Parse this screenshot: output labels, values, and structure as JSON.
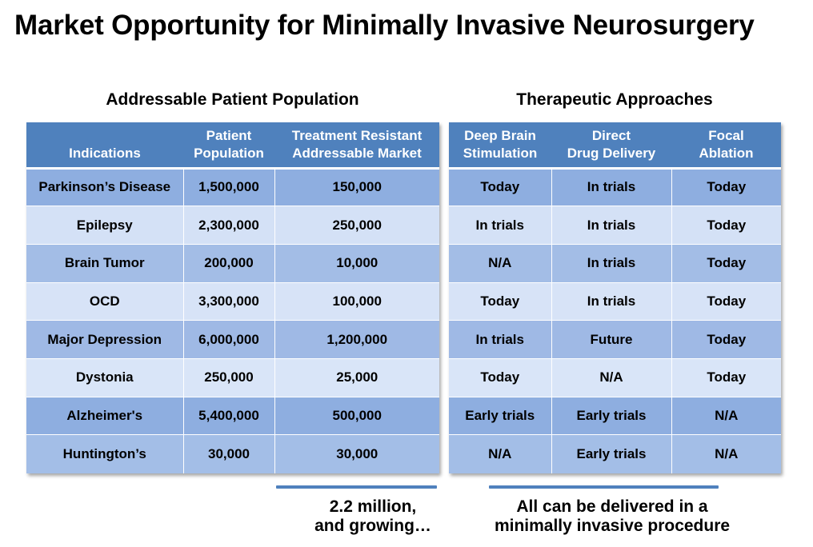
{
  "title": "Market Opportunity for Minimally Invasive Neurosurgery",
  "left_section": {
    "heading": "Addressable Patient Population",
    "headers": [
      "Indications",
      "Patient Population",
      "Treatment Resistant Addressable Market"
    ],
    "header_lines": [
      [
        "Indications"
      ],
      [
        "Patient",
        "Population"
      ],
      [
        "Treatment Resistant",
        "Addressable Market"
      ]
    ],
    "rows": [
      [
        "Parkinson’s Disease",
        "1,500,000",
        "150,000"
      ],
      [
        "Epilepsy",
        "2,300,000",
        "250,000"
      ],
      [
        "Brain Tumor",
        "200,000",
        "10,000"
      ],
      [
        "OCD",
        "3,300,000",
        "100,000"
      ],
      [
        "Major Depression",
        "6,000,000",
        "1,200,000"
      ],
      [
        "Dystonia",
        "250,000",
        "25,000"
      ],
      [
        "Alzheimer's",
        "5,400,000",
        "500,000"
      ],
      [
        "Huntington’s",
        "30,000",
        "30,000"
      ]
    ],
    "note_line1": "2.2 million,",
    "note_line2": "and growing…"
  },
  "right_section": {
    "heading": "Therapeutic Approaches",
    "header_lines": [
      [
        "Deep Brain",
        "Stimulation"
      ],
      [
        "Direct",
        "Drug Delivery"
      ],
      [
        "Focal",
        "Ablation"
      ]
    ],
    "rows": [
      [
        "Today",
        "In trials",
        "Today"
      ],
      [
        "In trials",
        "In trials",
        "Today"
      ],
      [
        "N/A",
        "In trials",
        "Today"
      ],
      [
        "Today",
        "In trials",
        "Today"
      ],
      [
        "In trials",
        "Future",
        "Today"
      ],
      [
        "Today",
        "N/A",
        "Today"
      ],
      [
        "Early trials",
        "Early trials",
        "N/A"
      ],
      [
        "N/A",
        "Early trials",
        "N/A"
      ]
    ],
    "note_line1": "All can be delivered in a",
    "note_line2": "minimally invasive procedure"
  },
  "colors": {
    "header": "#4f81bd",
    "underline": "#4f81bd"
  }
}
